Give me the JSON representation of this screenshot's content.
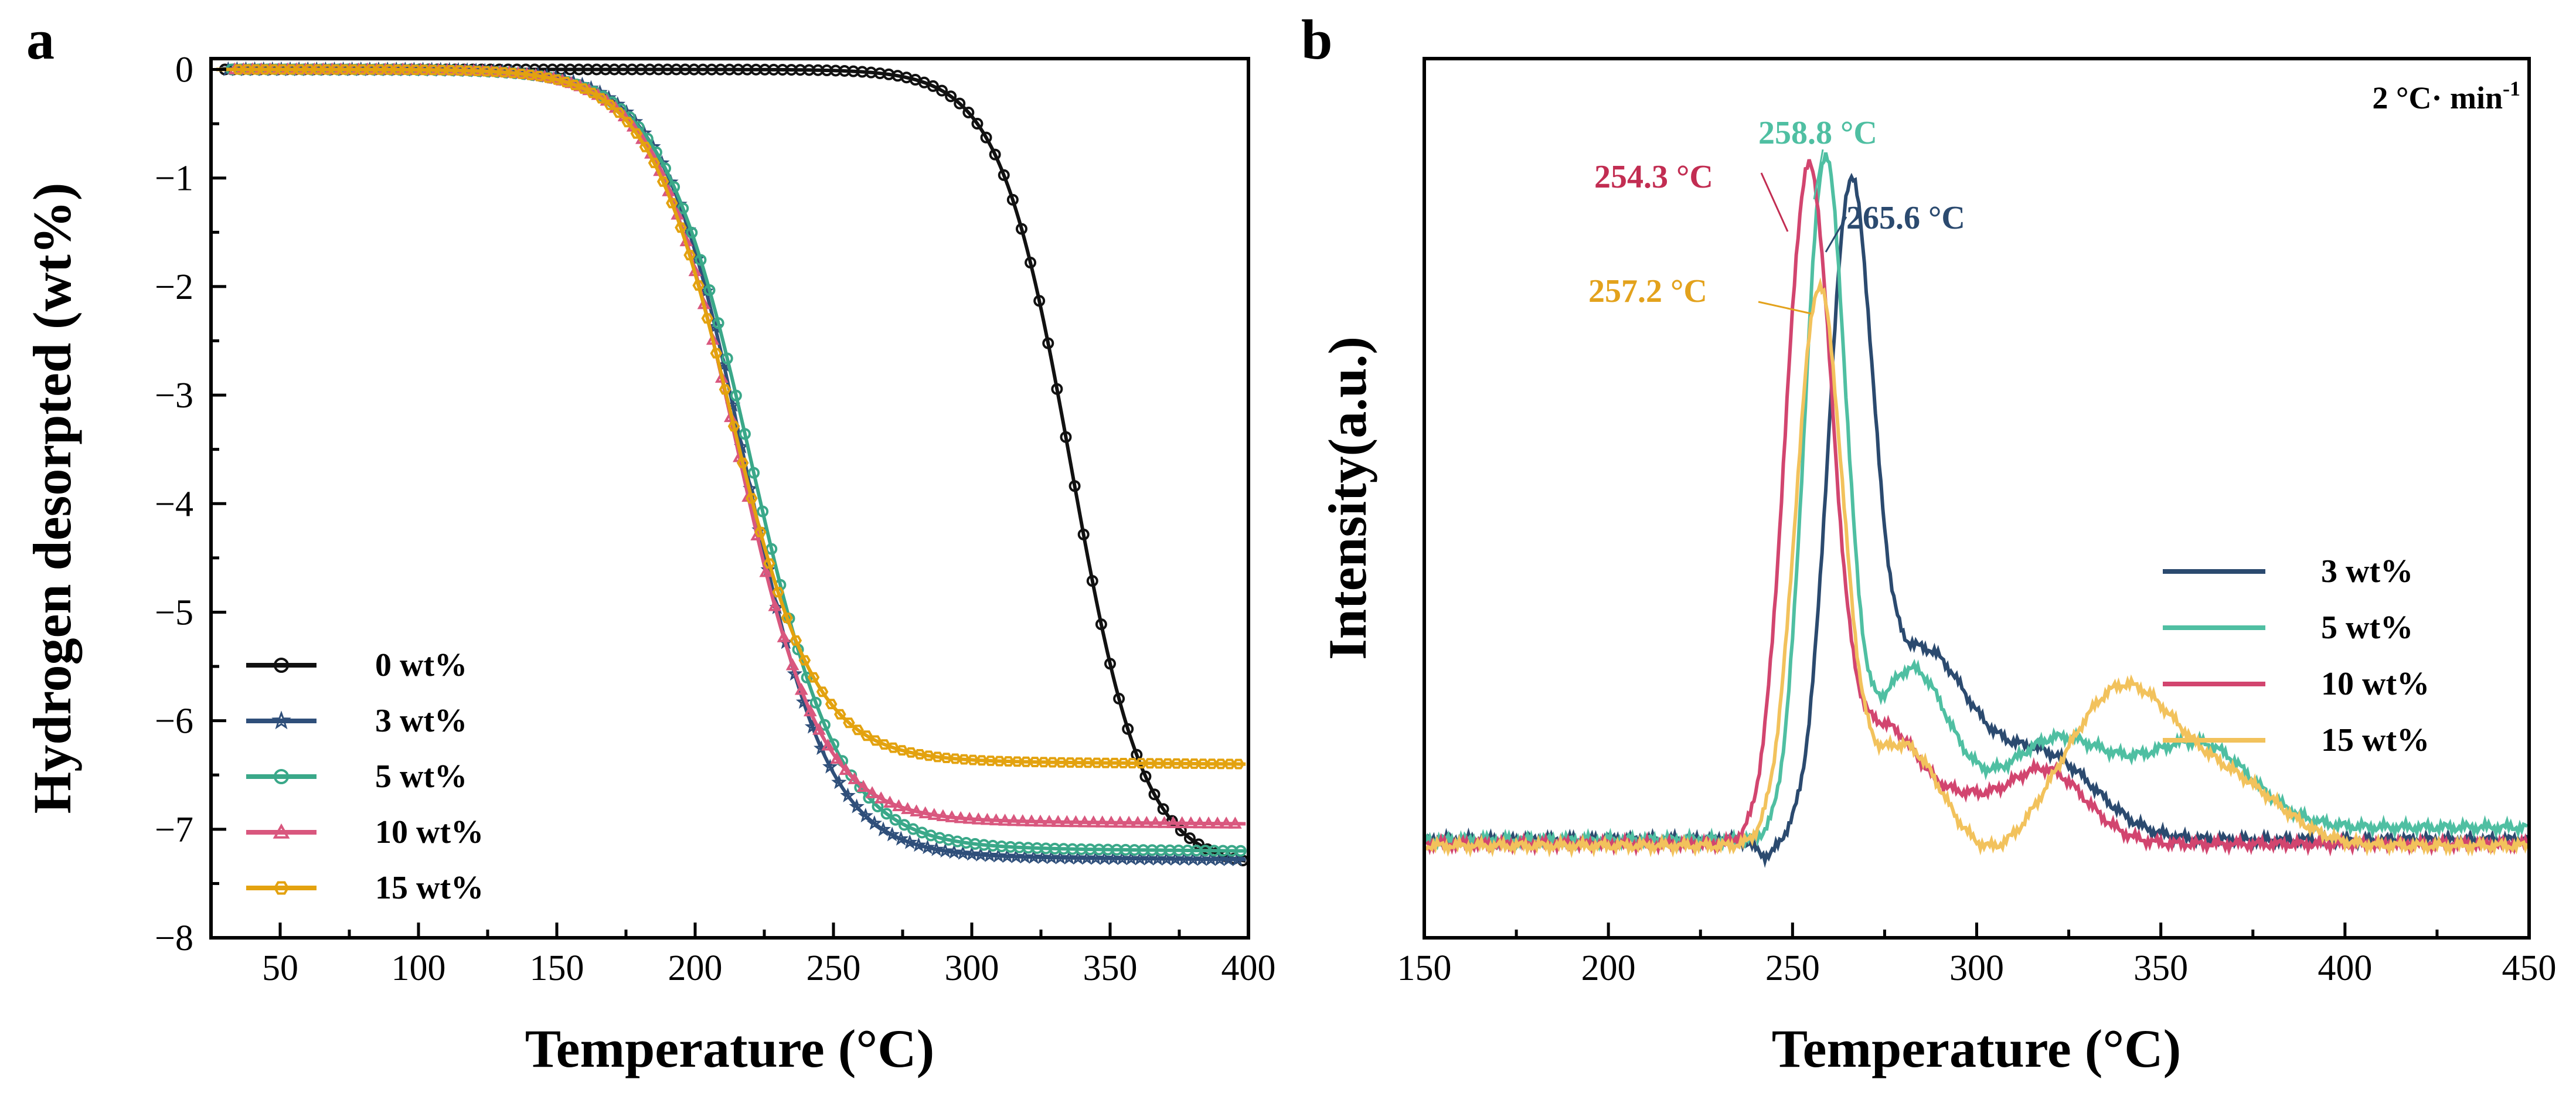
{
  "chart_data": [
    {
      "panel": "a",
      "type": "line",
      "xlabel": "Temperature (°C)",
      "ylabel": "Hydrogen desorpted (wt%)",
      "xlim": [
        25,
        400
      ],
      "ylim": [
        -8,
        0.1
      ],
      "xticks": [
        50,
        100,
        150,
        200,
        250,
        300,
        350,
        400
      ],
      "yticks": [
        0,
        -1,
        -2,
        -3,
        -4,
        -5,
        -6,
        -7,
        -8
      ],
      "legend_position": "bottom-left",
      "series": [
        {
          "name": "0 wt%",
          "color": "#111111",
          "marker": "circle",
          "mid": 336,
          "width": 13,
          "final": -7.35
        },
        {
          "name": "3 wt%",
          "color": "#2f4f7a",
          "marker": "star",
          "mid": 218,
          "width": 15,
          "final": -7.28
        },
        {
          "name": "5 wt%",
          "color": "#3aa889",
          "marker": "circle",
          "mid": 220,
          "width": 16,
          "final": -7.2
        },
        {
          "name": "10 wt%",
          "color": "#d9577e",
          "marker": "triangle",
          "mid": 215,
          "width": 15,
          "final": -6.95
        },
        {
          "name": "15 wt%",
          "color": "#e3a20f",
          "marker": "hexagon",
          "mid": 213,
          "width": 15,
          "final": -6.4
        }
      ]
    },
    {
      "panel": "b",
      "type": "line",
      "xlabel": "Temperature (°C)",
      "ylabel": "Intensity(a.u.)",
      "xlim": [
        150,
        450
      ],
      "ylim": [
        0,
        1.05
      ],
      "xticks": [
        150,
        200,
        250,
        300,
        350,
        400,
        450
      ],
      "rate_label_main": "2 °C· min",
      "rate_label_sup": "-1",
      "legend_position": "right",
      "series": [
        {
          "name": "3 wt%",
          "color": "#2b4a6f",
          "peak_T": 265.6,
          "peak_label": "265.6 °C"
        },
        {
          "name": "5 wt%",
          "color": "#4fbfa2",
          "peak_T": 258.8,
          "peak_label": "258.8 °C"
        },
        {
          "name": "10 wt%",
          "color": "#d2456f",
          "peak_T": 254.3,
          "peak_label": "254.3 °C"
        },
        {
          "name": "15 wt%",
          "color": "#f2c25c",
          "peak_T": 257.2,
          "peak_label": "257.2 °C"
        }
      ],
      "annotation_colors": [
        "#2b4a6f",
        "#4fbfa2",
        "#c22d52",
        "#e3a21c"
      ]
    }
  ],
  "panels": {
    "a": {
      "letter": "a"
    },
    "b": {
      "letter": "b"
    }
  }
}
